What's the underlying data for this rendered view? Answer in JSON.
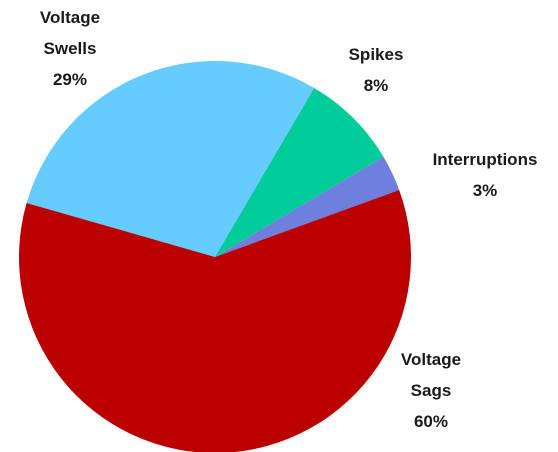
{
  "chart_data": {
    "type": "pie",
    "categories": [
      "Voltage Swells",
      "Spikes",
      "Interruptions",
      "Voltage Sags"
    ],
    "values": [
      29,
      8,
      3,
      60
    ],
    "value_labels": [
      "29%",
      "8%",
      "3%",
      "60%"
    ],
    "colors": [
      "#66ccff",
      "#00cc99",
      "#6f7fdd",
      "#bb0000"
    ]
  }
}
